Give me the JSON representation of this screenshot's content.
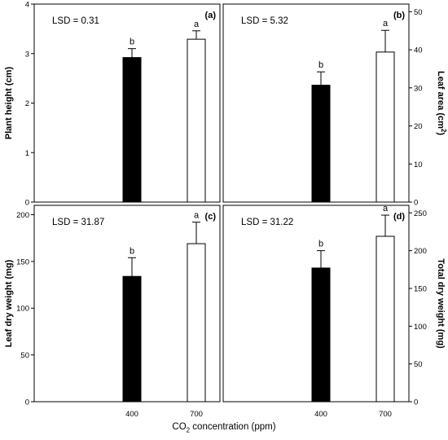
{
  "x_axis_title": {
    "prefix": "CO",
    "sub": "2",
    "suffix": " concentration (ppm)"
  },
  "colors": {
    "bar_400": "#000000",
    "bar_700": "#ffffff",
    "edge": "#000000"
  },
  "chart_data": [
    {
      "type": "bar",
      "panel": "(a)",
      "ylabel": "Plant height (cm)",
      "ylabel_side": "left",
      "lsd_text": "LSD = 0.31",
      "categories": [
        "400",
        "700"
      ],
      "values": [
        2.92,
        3.29
      ],
      "errors": [
        0.18,
        0.17
      ],
      "letters": [
        "b",
        "a"
      ],
      "ylim": [
        0,
        4
      ],
      "yticks": [
        0,
        1,
        2,
        3,
        4
      ],
      "show_x_ticklabels": false
    },
    {
      "type": "bar",
      "panel": "(b)",
      "ylabel": "Leaf area (cm",
      "ylabel_sup": "2",
      "ylabel_tail": ")",
      "ylabel_side": "right",
      "lsd_text": "LSD = 5.32",
      "categories": [
        "400",
        "700"
      ],
      "values": [
        30.7,
        39.4
      ],
      "errors": [
        3.5,
        5.7
      ],
      "letters": [
        "b",
        "a"
      ],
      "ylim": [
        0,
        52
      ],
      "yticks": [
        0,
        10,
        20,
        30,
        40,
        50
      ],
      "show_x_ticklabels": false
    },
    {
      "type": "bar",
      "panel": "(c)",
      "ylabel": "Leaf dry weight (mg)",
      "ylabel_side": "left",
      "lsd_text": "LSD = 31.87",
      "categories": [
        "400",
        "700"
      ],
      "values": [
        134,
        169
      ],
      "errors": [
        20,
        23
      ],
      "letters": [
        "b",
        "a"
      ],
      "ylim": [
        0,
        210
      ],
      "yticks": [
        0,
        50,
        100,
        150,
        200
      ],
      "show_x_ticklabels": true
    },
    {
      "type": "bar",
      "panel": "(d)",
      "ylabel": "Total dry weight (mg)",
      "ylabel_side": "right",
      "lsd_text": "LSD = 31.22",
      "categories": [
        "400",
        "700"
      ],
      "values": [
        177,
        219
      ],
      "errors": [
        23,
        28
      ],
      "letters": [
        "b",
        "a"
      ],
      "ylim": [
        0,
        260
      ],
      "yticks": [
        0,
        50,
        100,
        150,
        200,
        250
      ],
      "show_x_ticklabels": true
    }
  ]
}
